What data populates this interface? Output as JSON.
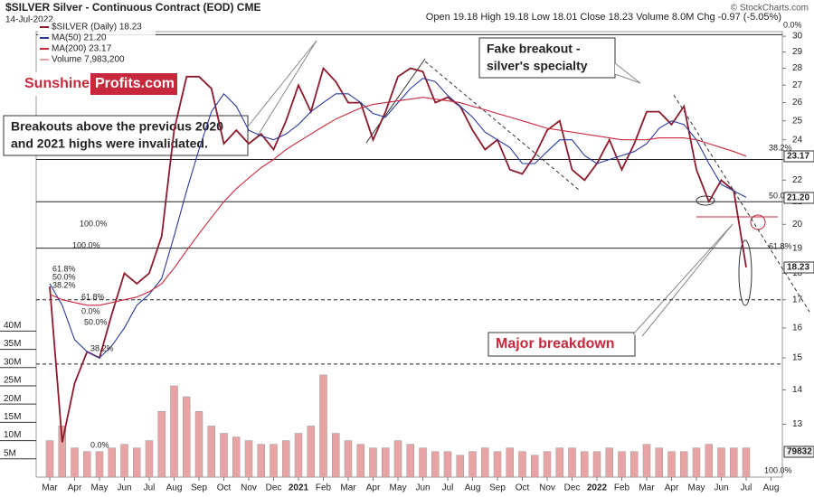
{
  "chart_data": {
    "type": "line",
    "title": "$SILVER Silver - Continuous Contract (EOD) CME",
    "date": "14-Jul-2022",
    "quote": "Open 19.18  High 19.18  Low 18.01  Close 18.23  Volume 8.0M  Chg -0.97 (-5.05%)",
    "credit": "© StockCharts.com",
    "brand": [
      "Sunshine",
      "Profits.com"
    ],
    "annotations": [
      "Breakouts above the previous 2020",
      "and 2021 highs were invalidated.",
      "Fake breakout -",
      "silver's specialty",
      "Major breakdown"
    ],
    "fib_labels": [
      "0.0%",
      "38.2%",
      "50.0%",
      "61.8%",
      "100.0%",
      "100.0%",
      "61.8%",
      "50.0%",
      "38.2%",
      "61.8%",
      "0.0%",
      "50.0%",
      "38.2%",
      "0.0%",
      "100.0%"
    ],
    "right_badges": [
      "23.17",
      "21.20",
      "18.23",
      "79832"
    ],
    "categories": [
      "Mar",
      null,
      "Apr",
      null,
      "May",
      null,
      "Jun",
      null,
      "Jul",
      null,
      "Aug",
      null,
      "Sep",
      null,
      "Oct",
      null,
      "Nov",
      null,
      "Dec",
      null,
      "2021",
      null,
      "Feb",
      null,
      "Mar",
      null,
      "Apr",
      null,
      "May",
      null,
      "Jun",
      null,
      "Jul",
      null,
      "Aug",
      null,
      "Sep",
      null,
      "Oct",
      null,
      "Nov",
      null,
      "Dec",
      null,
      "2022",
      null,
      "Feb",
      null,
      "Mar",
      null,
      "Apr",
      null,
      "May",
      null,
      "Jun",
      null,
      "Jul",
      null,
      "Aug"
    ],
    "series": [
      {
        "name": "$SILVER (Daily) 18.23",
        "color": "#8b1a2b",
        "values": [
          17.5,
          12.5,
          14.2,
          15.2,
          15.0,
          16.5,
          18.0,
          17.6,
          18.0,
          19.5,
          24.5,
          27.5,
          27.5,
          26.8,
          23.8,
          24.5,
          23.8,
          24.3,
          23.5,
          25.0,
          27.0,
          25.5,
          28.0,
          27.2,
          26.0,
          26.0,
          24.0,
          25.5,
          27.5,
          28.0,
          27.8,
          26.0,
          26.3,
          25.8,
          24.5,
          23.5,
          24.0,
          22.5,
          22.3,
          23.2,
          24.5,
          25.0,
          22.5,
          22.0,
          22.8,
          24.0,
          22.5,
          23.8,
          25.5,
          25.5,
          24.8,
          25.8,
          22.5,
          21.0,
          22.0,
          21.5,
          18.23,
          null,
          null
        ]
      },
      {
        "name": "MA(50) 21.20",
        "color": "#2a3a9c",
        "values": [
          17.6,
          16.8,
          15.6,
          15.2,
          15.0,
          15.4,
          16.0,
          16.8,
          17.2,
          17.8,
          19.5,
          21.5,
          23.5,
          25.5,
          26.5,
          25.8,
          24.5,
          24.2,
          24.0,
          24.3,
          24.8,
          25.5,
          26.0,
          26.5,
          26.5,
          26.0,
          25.4,
          25.2,
          26.0,
          26.8,
          27.4,
          27.2,
          26.4,
          25.8,
          25.2,
          24.4,
          24.0,
          23.6,
          22.8,
          22.8,
          23.4,
          24.0,
          24.0,
          23.2,
          22.8,
          23.0,
          23.2,
          23.4,
          23.8,
          24.6,
          25.0,
          24.8,
          24.0,
          22.8,
          21.8,
          21.5,
          21.2,
          null,
          null
        ]
      },
      {
        "name": "MA(200) 23.17",
        "color": "#c8283c",
        "values": [
          17.2,
          17.0,
          16.9,
          16.8,
          16.8,
          16.9,
          17.0,
          17.1,
          17.3,
          17.6,
          18.2,
          18.9,
          19.6,
          20.3,
          21.0,
          21.6,
          22.1,
          22.6,
          23.0,
          23.5,
          23.9,
          24.3,
          24.7,
          25.1,
          25.4,
          25.7,
          25.9,
          26.0,
          26.1,
          26.2,
          26.3,
          26.2,
          26.1,
          26.0,
          25.8,
          25.6,
          25.4,
          25.2,
          25.0,
          24.8,
          24.6,
          24.5,
          24.4,
          24.3,
          24.2,
          24.1,
          24.0,
          24.0,
          24.0,
          24.1,
          24.1,
          24.1,
          24.0,
          23.8,
          23.6,
          23.4,
          23.17,
          null,
          null
        ]
      },
      {
        "name": "Volume 7,983,200",
        "color": "#e8a4a4",
        "axis": "y2",
        "values": [
          10,
          14,
          8,
          7,
          7,
          8,
          9,
          8,
          10,
          18,
          25,
          22,
          18,
          14,
          12,
          11,
          10,
          9,
          9,
          10,
          12,
          14,
          28,
          12,
          10,
          9,
          8,
          8,
          10,
          9,
          8,
          7,
          7,
          6,
          7,
          8,
          7,
          8,
          7,
          6,
          7,
          8,
          8,
          7,
          7,
          8,
          7,
          7,
          9,
          8,
          7,
          7,
          8,
          9,
          8,
          8,
          8,
          null,
          null
        ]
      }
    ],
    "levels": [
      {
        "value": 30.1,
        "dashed": false
      },
      {
        "value": 23.0,
        "dashed": false
      },
      {
        "value": 21.0,
        "dashed": false
      },
      {
        "value": 19.0,
        "dashed": false
      },
      {
        "value": 17.0,
        "dashed": true
      },
      {
        "value": 14.8,
        "dashed": true
      }
    ],
    "log_scale": true,
    "ylim": [
      11.6,
      30.3
    ],
    "yticks": [
      13,
      14,
      15,
      16,
      17,
      18,
      19,
      20,
      21,
      22,
      23,
      24,
      25,
      26,
      27,
      28,
      29,
      30
    ],
    "y2lim": [
      0,
      122
    ],
    "y2ticks": [
      {
        "value": 5,
        "label": "5M"
      },
      {
        "value": 10,
        "label": "10M"
      },
      {
        "value": 15,
        "label": "15M"
      },
      {
        "value": 20,
        "label": "20M"
      },
      {
        "value": 25,
        "label": "25M"
      },
      {
        "value": 30,
        "label": "30M"
      },
      {
        "value": 35,
        "label": "35M"
      },
      {
        "value": 40,
        "label": "40M"
      }
    ]
  }
}
